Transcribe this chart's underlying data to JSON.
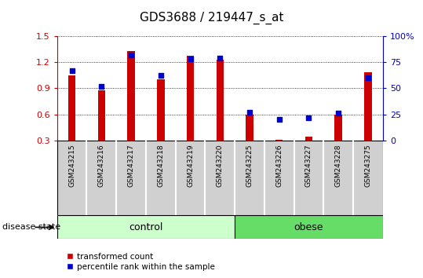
{
  "title": "GDS3688 / 219447_s_at",
  "samples": [
    "GSM243215",
    "GSM243216",
    "GSM243217",
    "GSM243218",
    "GSM243219",
    "GSM243220",
    "GSM243225",
    "GSM243226",
    "GSM243227",
    "GSM243228",
    "GSM243275"
  ],
  "transformed_count": [
    1.05,
    0.88,
    1.33,
    1.0,
    1.27,
    1.23,
    0.6,
    0.31,
    0.34,
    0.6,
    1.08
  ],
  "percentile_rank": [
    67,
    52,
    82,
    62,
    78,
    79,
    27,
    20,
    22,
    26,
    60
  ],
  "ylim_left": [
    0.3,
    1.5
  ],
  "ylim_right": [
    0,
    100
  ],
  "yticks_left": [
    0.3,
    0.6,
    0.9,
    1.2,
    1.5
  ],
  "yticks_right": [
    0,
    25,
    50,
    75,
    100
  ],
  "ytick_labels_right": [
    "0",
    "25",
    "50",
    "75",
    "100%"
  ],
  "bar_color": "#cc0000",
  "dot_color": "#0000cc",
  "bar_width": 0.25,
  "dot_size": 25,
  "groups": [
    {
      "label": "control",
      "start": 0,
      "end": 6,
      "color": "#ccffcc"
    },
    {
      "label": "obese",
      "start": 6,
      "end": 11,
      "color": "#66dd66"
    }
  ],
  "disease_state_label": "disease state",
  "legend_bar_label": "transformed count",
  "legend_dot_label": "percentile rank within the sample",
  "tick_bg_color": "#d0d0d0",
  "axis_left_color": "#cc0000",
  "axis_right_color": "#0000cc"
}
